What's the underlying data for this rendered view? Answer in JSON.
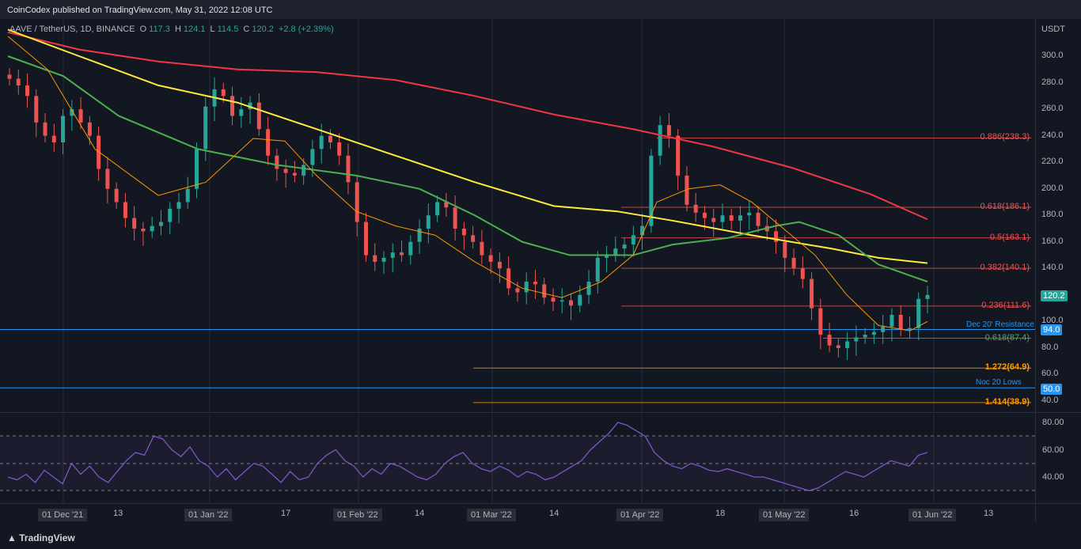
{
  "header": {
    "published": "CoinCodex published on TradingView.com, May 31, 2022 12:08 UTC"
  },
  "legend": {
    "symbol": "AAVE / TetherUS, 1D, BINANCE",
    "open_label": "O",
    "open": "117.3",
    "high_label": "H",
    "high": "124.1",
    "low_label": "L",
    "low": "114.5",
    "close_label": "C",
    "close": "120.2",
    "change": "+2.8 (+2.39%)"
  },
  "price_axis": {
    "currency": "USDT",
    "ticks": [
      "300.0",
      "280.0",
      "260.0",
      "240.0",
      "220.0",
      "200.0",
      "180.0",
      "160.0",
      "140.0",
      "120.0",
      "100.0",
      "80.0",
      "60.0",
      "40.0"
    ],
    "last_price": "120.2",
    "level_94": "94.0",
    "level_50": "50.0"
  },
  "fib_levels": [
    {
      "label": "0.886(238.3)",
      "price": 238.3,
      "color": "#ef5350"
    },
    {
      "label": "0.618(186.1)",
      "price": 186.1,
      "color": "#ef5350"
    },
    {
      "label": "0.5(163.1)",
      "price": 163.1,
      "color": "#ef5350"
    },
    {
      "label": "0.382(140.1)",
      "price": 140.1,
      "color": "#ef5350"
    },
    {
      "label": "0.236(111.6)",
      "price": 111.6,
      "color": "#ef5350"
    },
    {
      "label": "0.618(87.4)",
      "price": 87.4,
      "color": "#4caf50"
    },
    {
      "label": "1.272(64.9)",
      "price": 64.9,
      "color": "#ff9800"
    },
    {
      "label": "1.414(38.9)",
      "price": 38.9,
      "color": "#ff9800"
    }
  ],
  "annotations": {
    "resistance": "Dec 20' Resistance",
    "lows": "Noc 20 Lows"
  },
  "rsi_axis": {
    "ticks": [
      "80.00",
      "60.00",
      "40.00"
    ]
  },
  "time_axis": {
    "labels": [
      "01 Dec '21",
      "13",
      "01 Jan '22",
      "17",
      "01 Feb '22",
      "14",
      "01 Mar '22",
      "14",
      "01 Apr '22",
      "18",
      "01 May '22",
      "16",
      "01 Jun '22",
      "13"
    ]
  },
  "footer": {
    "brand": "TradingView"
  },
  "colors": {
    "up": "#26a69a",
    "down": "#ef5350",
    "ma200": "#f23645",
    "ma100": "#ffeb3b",
    "ma50": "#4caf50",
    "ma20": "#ff9800",
    "rsi": "#7e57c2",
    "blue": "#2196f3"
  },
  "chart_data": {
    "type": "candlestick",
    "title": "AAVE / TetherUS, 1D, BINANCE",
    "ylim": [
      30,
      315
    ],
    "ohlc_close_path": [
      283,
      278,
      270,
      250,
      240,
      235,
      255,
      260,
      250,
      240,
      215,
      200,
      190,
      178,
      170,
      168,
      172,
      175,
      185,
      190,
      200,
      230,
      262,
      275,
      270,
      255,
      260,
      265,
      245,
      225,
      215,
      212,
      210,
      218,
      230,
      240,
      235,
      225,
      205,
      175,
      150,
      145,
      148,
      152,
      150,
      160,
      170,
      180,
      190,
      186,
      170,
      165,
      160,
      150,
      145,
      140,
      125,
      122,
      130,
      128,
      118,
      115,
      116,
      112,
      120,
      130,
      148,
      150,
      155,
      158,
      165,
      172,
      225,
      248,
      240,
      210,
      188,
      182,
      178,
      175,
      180,
      176,
      180,
      182,
      172,
      168,
      160,
      148,
      140,
      132,
      110,
      90,
      82,
      80,
      85,
      88,
      90,
      92,
      96,
      105,
      94,
      95,
      117,
      120
    ]
  }
}
